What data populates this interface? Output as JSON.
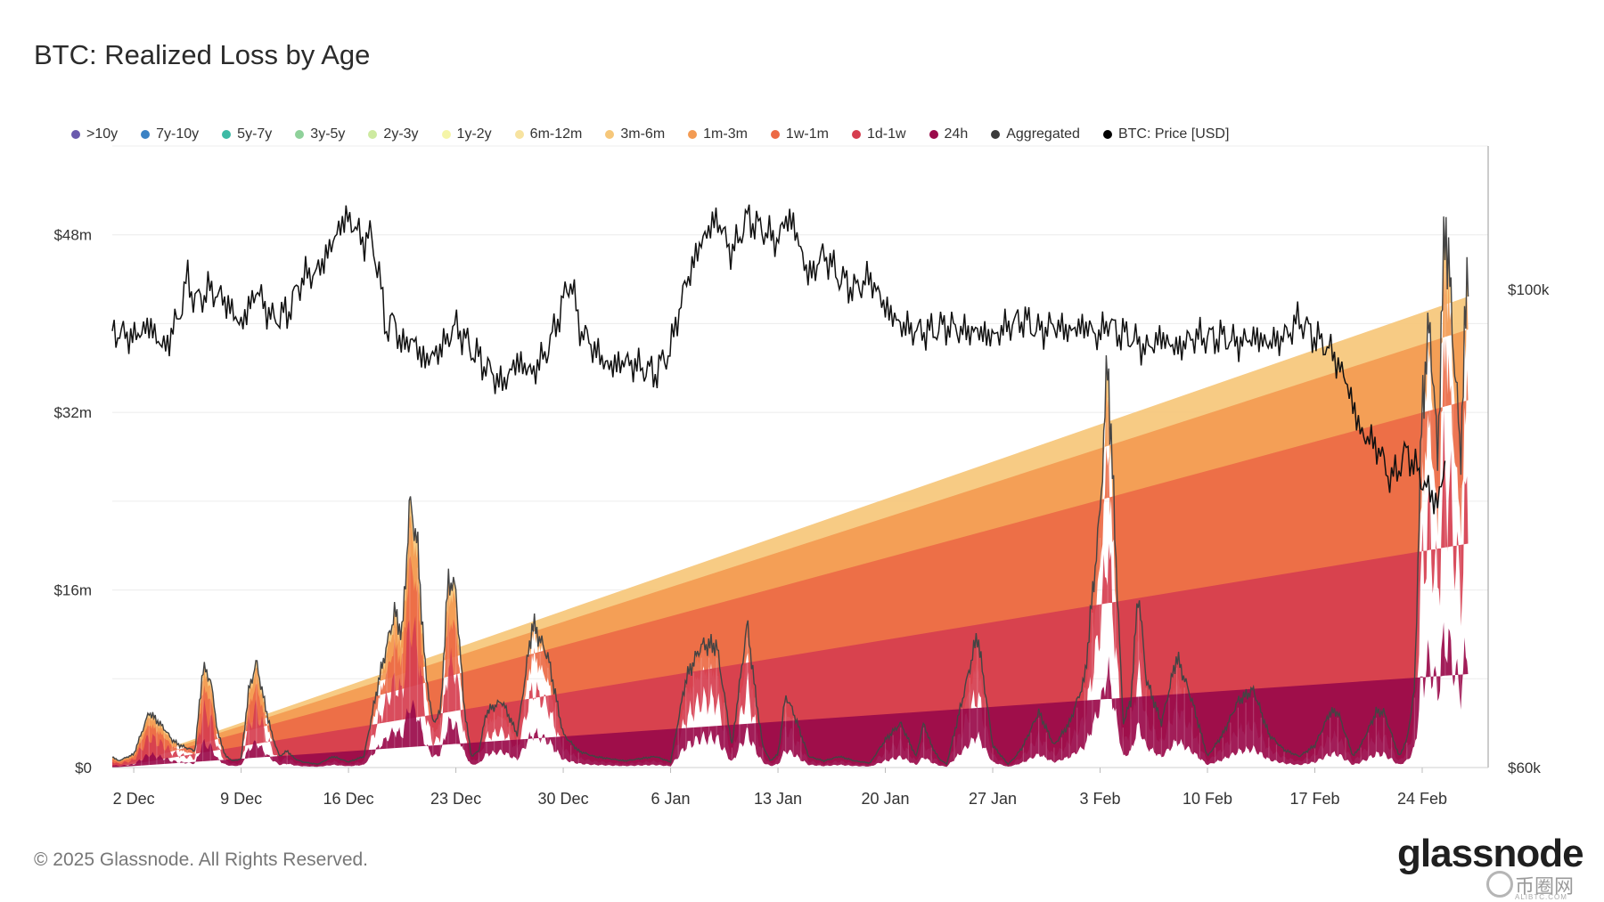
{
  "chart_data": {
    "type": "area",
    "title": "BTC: Realized Loss by Age",
    "legend": [
      {
        "name": ">10y",
        "color": "#6a5aad"
      },
      {
        "name": "7y-10y",
        "color": "#3b82c4"
      },
      {
        "name": "5y-7y",
        "color": "#3dbaa5"
      },
      {
        "name": "3y-5y",
        "color": "#8fd19a"
      },
      {
        "name": "2y-3y",
        "color": "#cdeaa0"
      },
      {
        "name": "1y-2y",
        "color": "#f5f5a8"
      },
      {
        "name": "6m-12m",
        "color": "#f7e3a0"
      },
      {
        "name": "3m-6m",
        "color": "#f6c77a"
      },
      {
        "name": "1m-3m",
        "color": "#f39b53"
      },
      {
        "name": "1w-1m",
        "color": "#ec6a45"
      },
      {
        "name": "1d-1w",
        "color": "#d63e4f"
      },
      {
        "name": "24h",
        "color": "#9a0a4a"
      },
      {
        "name": "Aggregated",
        "color": "#3a3a3a"
      },
      {
        "name": "BTC: Price [USD]",
        "color": "#000000"
      }
    ],
    "x_ticks": [
      "2 Dec",
      "9 Dec",
      "16 Dec",
      "23 Dec",
      "30 Dec",
      "6 Jan",
      "13 Jan",
      "20 Jan",
      "27 Jan",
      "3 Feb",
      "10 Feb",
      "17 Feb",
      "24 Feb"
    ],
    "x_tick_days": [
      0,
      7,
      14,
      21,
      28,
      35,
      42,
      49,
      56,
      63,
      70,
      77,
      84
    ],
    "x_range_days": [
      -1.4,
      88.3
    ],
    "left_axis_ticks": [
      "$0",
      "$16m",
      "$32m",
      "$48m"
    ],
    "left_axis_values": [
      0,
      16,
      32,
      48
    ],
    "ylim_left_musd": [
      0,
      56
    ],
    "right_axis_ticks": [
      "$60k",
      "$100k"
    ],
    "right_axis_values": [
      60000,
      100000
    ],
    "ylim_right_usd": [
      60000,
      112000
    ],
    "aggregated_loss_musd": {
      "day": [
        -1.4,
        -1,
        0,
        1,
        2,
        2.5,
        3,
        4,
        4.5,
        5,
        5.5,
        6,
        6.5,
        7,
        7.5,
        8,
        8.5,
        9,
        9.5,
        10,
        10.5,
        11,
        12,
        13,
        14,
        15,
        16,
        17,
        17.5,
        18,
        18.5,
        19,
        19.5,
        20,
        20.5,
        21,
        21.5,
        22,
        22.5,
        23,
        24,
        25,
        26,
        27,
        28,
        29,
        30,
        31,
        32,
        33,
        34,
        35,
        36,
        37,
        38,
        39,
        40,
        40.5,
        41,
        41.5,
        42,
        42.5,
        43,
        44,
        45,
        46,
        47,
        48,
        49,
        50,
        50.5,
        51,
        51.5,
        52,
        52.5,
        53,
        54,
        55,
        56,
        57,
        57.5,
        58,
        59,
        60,
        61,
        62,
        63,
        63.5,
        64,
        64.5,
        65,
        65.5,
        66,
        67,
        68,
        69,
        70,
        71,
        72,
        73,
        74,
        75,
        76,
        77,
        78,
        78.5,
        79,
        79.5,
        80,
        81,
        81.5,
        82,
        82.5,
        83,
        83.5,
        84,
        84.5,
        85,
        85.5,
        86,
        86.5,
        87,
        87.5,
        88
      ],
      "value": [
        1,
        0.6,
        1.2,
        5,
        3.5,
        2.5,
        2,
        1.5,
        9,
        8,
        3,
        1,
        0.6,
        0.8,
        7,
        9.5,
        6,
        3,
        1,
        1.5,
        0.8,
        0.5,
        0.3,
        1,
        0.5,
        1,
        8,
        14,
        12,
        24,
        20,
        9,
        4,
        5,
        17,
        16,
        6,
        1,
        1.5,
        5,
        6,
        3,
        13,
        10,
        3,
        1.5,
        1,
        0.8,
        0.6,
        0.8,
        1,
        0.5,
        8,
        11,
        11,
        2,
        13,
        7,
        2,
        0.6,
        1.2,
        6.5,
        5,
        1,
        0.6,
        1,
        0.6,
        0.4,
        2.5,
        4,
        2.5,
        1,
        4,
        2,
        0.8,
        0.3,
        6,
        12,
        2,
        0.3,
        1,
        2,
        5,
        2,
        4,
        8,
        23,
        37,
        20,
        4,
        6,
        16,
        8,
        4,
        10,
        6,
        1,
        3,
        6,
        7,
        3,
        1.6,
        1,
        2,
        5,
        5,
        3,
        1,
        2,
        5,
        5,
        3,
        1,
        2.5,
        7,
        33,
        40,
        28,
        50,
        39,
        28,
        47
      ]
    },
    "aggregated_loss_musd_caption": "Aggregated",
    "btc_price_usd": {
      "day": [
        -1.4,
        0,
        1,
        2,
        3,
        3.5,
        4,
        5,
        6,
        7,
        8,
        9,
        10,
        11,
        12,
        13,
        13.5,
        14,
        15,
        15.5,
        16,
        16.5,
        17,
        17.5,
        18,
        19,
        20,
        21,
        22,
        23,
        24,
        25,
        26,
        27,
        28,
        28.5,
        29,
        30,
        31,
        32,
        33,
        34,
        35,
        35.5,
        36,
        37,
        38,
        39,
        40,
        41,
        42,
        42.5,
        43,
        44,
        45,
        46,
        47,
        48,
        49,
        50,
        51,
        52,
        53,
        54,
        55,
        56,
        57,
        58,
        59,
        60,
        61,
        62,
        63,
        63.5,
        64,
        65,
        66,
        67,
        68,
        69,
        70,
        71,
        72,
        73,
        74,
        75,
        76,
        77,
        78,
        79,
        80,
        81,
        82,
        83,
        84,
        85,
        85.5,
        86,
        86.5,
        87,
        87.5,
        88
      ],
      "price": [
        96500,
        96000,
        97000,
        95000,
        98000,
        101000,
        99000,
        100000,
        99000,
        97000,
        100000,
        97500,
        98000,
        101000,
        101500,
        104000,
        105500,
        106000,
        104000,
        104500,
        101000,
        96500,
        97500,
        95000,
        96000,
        94000,
        95000,
        97000,
        95000,
        93500,
        92000,
        94000,
        93000,
        95000,
        99000,
        101000,
        97000,
        95000,
        93500,
        94000,
        93500,
        93000,
        95000,
        98000,
        100500,
        104000,
        106000,
        103000,
        106000,
        105000,
        104000,
        106000,
        105500,
        101000,
        103000,
        101000,
        100000,
        101000,
        98500,
        97000,
        96500,
        96500,
        97000,
        96500,
        96500,
        96000,
        97000,
        97500,
        96500,
        97000,
        96500,
        97000,
        96000,
        97500,
        96500,
        96000,
        95000,
        96000,
        95000,
        96000,
        96000,
        96000,
        95500,
        96000,
        95500,
        96000,
        97500,
        96000,
        95000,
        92500,
        88000,
        87000,
        84000,
        86500,
        84000,
        82000,
        85500
      ]
    }
  },
  "footer": {
    "copyright": "© 2025 Glassnode. All Rights Reserved."
  },
  "brand": {
    "logo": "glassnode",
    "watermark": "币圈网",
    "watermark_sub": "ALIBTC.COM"
  }
}
